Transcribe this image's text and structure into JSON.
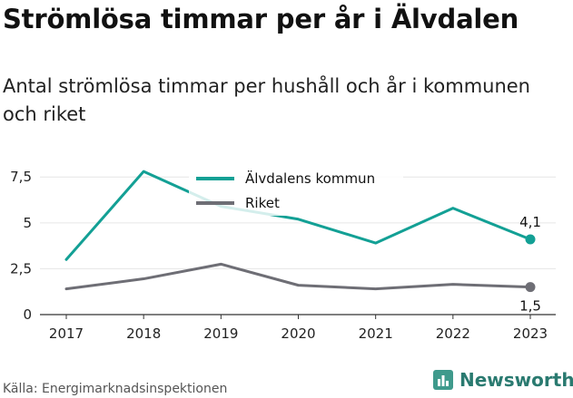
{
  "header": {
    "title": "Strömlösa timmar per år i Älvdalen",
    "subtitle": "Antal strömlösa timmar per hushåll och år i kommunen och riket"
  },
  "footer": {
    "source": "Källa: Energimarknadsinspektionen",
    "brand": "Newsworthy",
    "brand_icon": "newsworthy-logo-icon"
  },
  "colors": {
    "alvdalen": "#13a095",
    "riket": "#6e6e75",
    "grid": "#e6e6e6",
    "axis": "#333333"
  },
  "chart_data": {
    "type": "line",
    "x": [
      "2017",
      "2018",
      "2019",
      "2020",
      "2021",
      "2022",
      "2023"
    ],
    "series": [
      {
        "name": "Älvdalens kommun",
        "values": [
          3.0,
          7.8,
          5.9,
          5.2,
          3.9,
          5.8,
          4.1
        ]
      },
      {
        "name": "Riket",
        "values": [
          1.4,
          1.95,
          2.75,
          1.6,
          1.4,
          1.65,
          1.5
        ]
      }
    ],
    "yticks": [
      "0",
      "2,5",
      "5",
      "7,5"
    ],
    "ytick_values": [
      0,
      2.5,
      5,
      7.5
    ],
    "ylim": [
      0,
      8.5
    ],
    "end_labels": [
      "4,1",
      "1,5"
    ],
    "legend_position": "top-center",
    "grid": true
  }
}
